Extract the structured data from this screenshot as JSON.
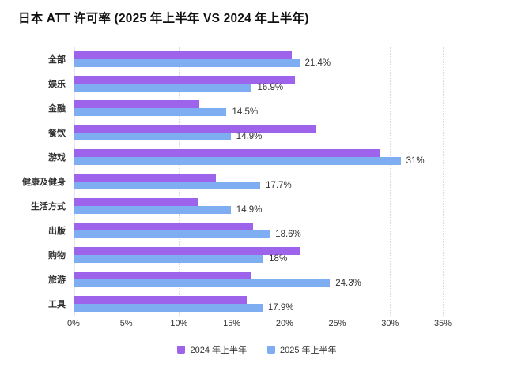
{
  "title": "日本 ATT 许可率 (2025 年上半年 VS 2024 年上半年)",
  "colors": {
    "series_2024": "#9d63ea",
    "series_2025": "#7fadf2",
    "grid_line": "#d9d9d9",
    "axis_line": "#e8e5f2",
    "text": "#333333",
    "title_text": "#111111",
    "background": "#ffffff"
  },
  "chart_data": {
    "type": "bar",
    "orientation": "horizontal",
    "title": "日本 ATT 许可率 (2025 年上半年 VS 2024 年上半年)",
    "categories": [
      "全部",
      "娱乐",
      "金融",
      "餐饮",
      "游戏",
      "健康及健身",
      "生活方式",
      "出版",
      "购物",
      "旅游",
      "工具"
    ],
    "series": [
      {
        "name": "2024 年上半年",
        "color": "#9d63ea",
        "values": [
          20.7,
          21.0,
          11.9,
          23.0,
          29.0,
          13.5,
          11.8,
          17.0,
          21.5,
          16.8,
          16.4
        ],
        "value_labels": [
          "",
          "",
          "",
          "",
          "",
          "",
          "",
          "",
          "",
          "",
          ""
        ]
      },
      {
        "name": "2025 年上半年",
        "color": "#7fadf2",
        "values": [
          21.4,
          16.9,
          14.5,
          14.9,
          31,
          17.7,
          14.9,
          18.6,
          18,
          24.3,
          17.9
        ],
        "value_labels": [
          "21.4%",
          "16.9%",
          "14.5%",
          "14.9%",
          "31%",
          "17.7%",
          "14.9%",
          "18.6%",
          "18%",
          "24.3%",
          "17.9%"
        ]
      }
    ],
    "xlabel": "",
    "ylabel": "",
    "x_ticks": [
      "0%",
      "5%",
      "10%",
      "15%",
      "20%",
      "25%",
      "30%",
      "35%"
    ],
    "x_tick_values": [
      0,
      5,
      10,
      15,
      20,
      25,
      30,
      35
    ],
    "xlim": [
      0,
      35
    ],
    "grid": "vertical-dotted",
    "legend_position": "bottom-center"
  }
}
